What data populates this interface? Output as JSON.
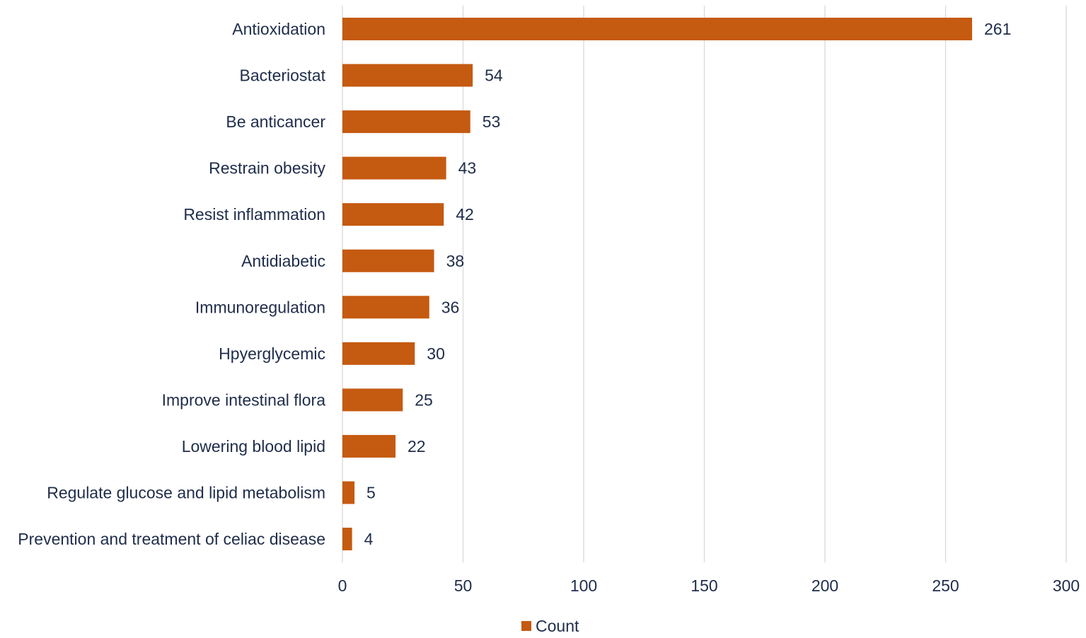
{
  "chart_data": {
    "type": "bar",
    "orientation": "horizontal",
    "categories": [
      "Antioxidation",
      "Bacteriostat",
      "Be anticancer",
      "Restrain obesity",
      "Resist inflammation",
      "Antidiabetic",
      "Immunoregulation",
      "Hpyerglycemic",
      "Improve intestinal flora",
      "Lowering blood lipid",
      "Regulate glucose and lipid metabolism",
      "Prevention and treatment of celiac disease"
    ],
    "series": [
      {
        "name": "Count",
        "values": [
          261,
          54,
          53,
          43,
          42,
          38,
          36,
          30,
          25,
          22,
          5,
          4
        ],
        "color": "#c55a11"
      }
    ],
    "title": "",
    "xlabel": "",
    "ylabel": "",
    "xlim": [
      0,
      300
    ],
    "x_ticks": [
      "0",
      "50",
      "100",
      "150",
      "200",
      "250",
      "300"
    ],
    "grid": "vertical",
    "legend": {
      "position": "bottom",
      "entries": [
        "Count"
      ]
    },
    "data_labels": true
  }
}
